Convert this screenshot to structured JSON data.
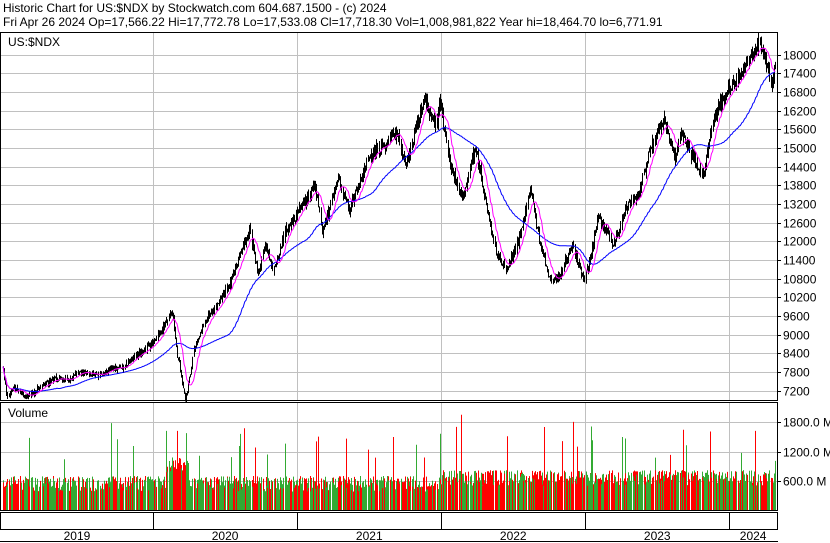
{
  "header": {
    "line1": "Historic Chart for US:$NDX by Stockwatch.com 604.687.1500 - (c) 2024",
    "line2": "Fri Apr 26 2024   Op=17,566.22   Hi=17,772.78   Lo=17,533.08   Cl=17,718.30   Vol=1,008,981,822   Year hi=18,464.70   lo=6,771.91"
  },
  "price_panel": {
    "symbol_label": "US:$NDX",
    "y_ticks": [
      "18000",
      "17400",
      "16800",
      "16200",
      "15600",
      "15000",
      "14400",
      "13800",
      "13200",
      "12600",
      "12000",
      "11400",
      "10800",
      "10200",
      "9600",
      "9000",
      "8400",
      "7800",
      "7200"
    ]
  },
  "volume_panel": {
    "title": "Volume",
    "y_ticks": [
      "1800.0 M",
      "1200.0 M",
      "600.0 M"
    ]
  },
  "x_axis": {
    "year_labels": [
      "2019",
      "2020",
      "2021",
      "2022",
      "2023",
      "2024"
    ]
  },
  "colors": {
    "price_bars": "#000000",
    "ma_short": "#ff00ff",
    "ma_long": "#0000ff",
    "volume_up": "#33aa33",
    "volume_down": "#ff0000",
    "grid": "#c0c0c0"
  },
  "chart_data": {
    "type": "line",
    "title": "US:$NDX",
    "ylim": [
      6900,
      18700
    ],
    "date_range": [
      "2018-12-17",
      "2024-04-26"
    ],
    "close_anchors": [
      [
        "2018-12-17",
        7900
      ],
      [
        "2018-12-26",
        6950
      ],
      [
        "2019-01-15",
        7300
      ],
      [
        "2019-02-15",
        7000
      ],
      [
        "2019-04-01",
        7400
      ],
      [
        "2019-05-01",
        7600
      ],
      [
        "2019-06-01",
        7550
      ],
      [
        "2019-07-01",
        7800
      ],
      [
        "2019-08-15",
        7700
      ],
      [
        "2019-09-15",
        7900
      ],
      [
        "2019-10-15",
        7950
      ],
      [
        "2019-11-15",
        8300
      ],
      [
        "2019-12-31",
        8700
      ],
      [
        "2020-02-19",
        9700
      ],
      [
        "2020-03-01",
        8500
      ],
      [
        "2020-03-23",
        6850
      ],
      [
        "2020-04-15",
        8600
      ],
      [
        "2020-05-15",
        9500
      ],
      [
        "2020-06-15",
        10000
      ],
      [
        "2020-07-15",
        10700
      ],
      [
        "2020-09-02",
        12400
      ],
      [
        "2020-09-23",
        10900
      ],
      [
        "2020-10-12",
        11900
      ],
      [
        "2020-11-01",
        11000
      ],
      [
        "2020-12-01",
        12300
      ],
      [
        "2020-12-31",
        12900
      ],
      [
        "2021-02-15",
        13800
      ],
      [
        "2021-03-05",
        12300
      ],
      [
        "2021-04-15",
        14000
      ],
      [
        "2021-05-12",
        13000
      ],
      [
        "2021-07-01",
        14700
      ],
      [
        "2021-08-15",
        15200
      ],
      [
        "2021-09-06",
        15600
      ],
      [
        "2021-10-04",
        14500
      ],
      [
        "2021-11-19",
        16600
      ],
      [
        "2021-12-20",
        15700
      ],
      [
        "2021-12-28",
        16500
      ],
      [
        "2022-01-27",
        14300
      ],
      [
        "2022-02-24",
        13400
      ],
      [
        "2022-03-29",
        15000
      ],
      [
        "2022-04-30",
        12800
      ],
      [
        "2022-05-20",
        11600
      ],
      [
        "2022-06-16",
        11100
      ],
      [
        "2022-07-15",
        12000
      ],
      [
        "2022-08-16",
        13700
      ],
      [
        "2022-09-01",
        12300
      ],
      [
        "2022-09-30",
        10900
      ],
      [
        "2022-10-13",
        10700
      ],
      [
        "2022-11-01",
        11000
      ],
      [
        "2022-11-30",
        11900
      ],
      [
        "2022-12-28",
        10700
      ],
      [
        "2023-01-15",
        11500
      ],
      [
        "2023-02-02",
        12800
      ],
      [
        "2023-03-13",
        11900
      ],
      [
        "2023-04-15",
        13100
      ],
      [
        "2023-05-15",
        13500
      ],
      [
        "2023-06-15",
        15000
      ],
      [
        "2023-07-19",
        15900
      ],
      [
        "2023-08-18",
        14700
      ],
      [
        "2023-09-01",
        15500
      ],
      [
        "2023-10-26",
        14100
      ],
      [
        "2023-11-20",
        15900
      ],
      [
        "2023-12-28",
        16900
      ],
      [
        "2024-01-15",
        17000
      ],
      [
        "2024-02-15",
        17800
      ],
      [
        "2024-03-21",
        18400
      ],
      [
        "2024-04-19",
        17000
      ],
      [
        "2024-04-26",
        17718.3
      ]
    ],
    "last_bar": {
      "date": "2024-04-26",
      "open": 17566.22,
      "high": 17772.78,
      "low": 17533.08,
      "close": 17718.3,
      "volume": 1008981822
    },
    "year_high": 18464.7,
    "year_low": 6771.91,
    "volume_ylim": [
      0,
      2200
    ],
    "volume_unit": "M"
  }
}
